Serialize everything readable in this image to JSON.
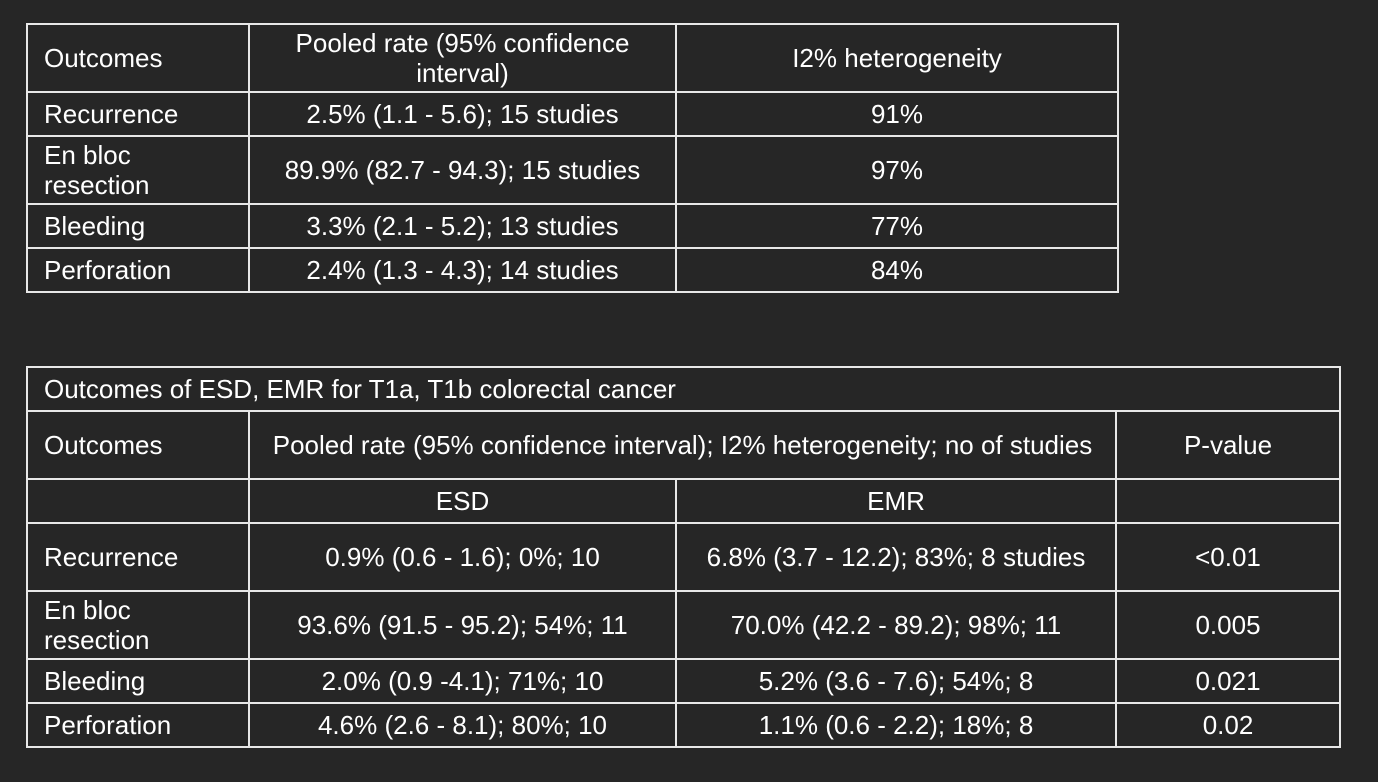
{
  "table1": {
    "headers": [
      "Outcomes",
      "Pooled rate (95% confidence interval)",
      "I2% heterogeneity"
    ],
    "rows": [
      [
        "Recurrence",
        "2.5% (1.1 - 5.6); 15 studies",
        "91%"
      ],
      [
        "En bloc resection",
        "89.9% (82.7 - 94.3); 15 studies",
        "97%"
      ],
      [
        "Bleeding",
        "3.3% (2.1 - 5.2); 13 studies",
        "77%"
      ],
      [
        "Perforation",
        "2.4% (1.3 - 4.3); 14 studies",
        "84%"
      ]
    ]
  },
  "table2": {
    "title": "Outcomes of ESD, EMR for T1a, T1b colorectal cancer",
    "headers": [
      "Outcomes",
      "Pooled rate (95% confidence interval); I2% heterogeneity; no of studies",
      "P-value"
    ],
    "subheaders": [
      "ESD",
      "EMR"
    ],
    "rows": [
      [
        "Recurrence",
        "0.9% (0.6 - 1.6); 0%; 10",
        "6.8% (3.7 - 12.2); 83%; 8 studies",
        "<0.01"
      ],
      [
        "En bloc resection",
        "93.6% (91.5 - 95.2); 54%; 11",
        "70.0% (42.2 - 89.2); 98%; 11",
        "0.005"
      ],
      [
        "Bleeding",
        "2.0% (0.9 -4.1); 71%; 10",
        "5.2% (3.6 - 7.6); 54%; 8",
        "0.021"
      ],
      [
        "Perforation",
        "4.6% (2.6 - 8.1); 80%; 10",
        "1.1% (0.6 - 2.2); 18%; 8",
        "0.02"
      ]
    ]
  }
}
